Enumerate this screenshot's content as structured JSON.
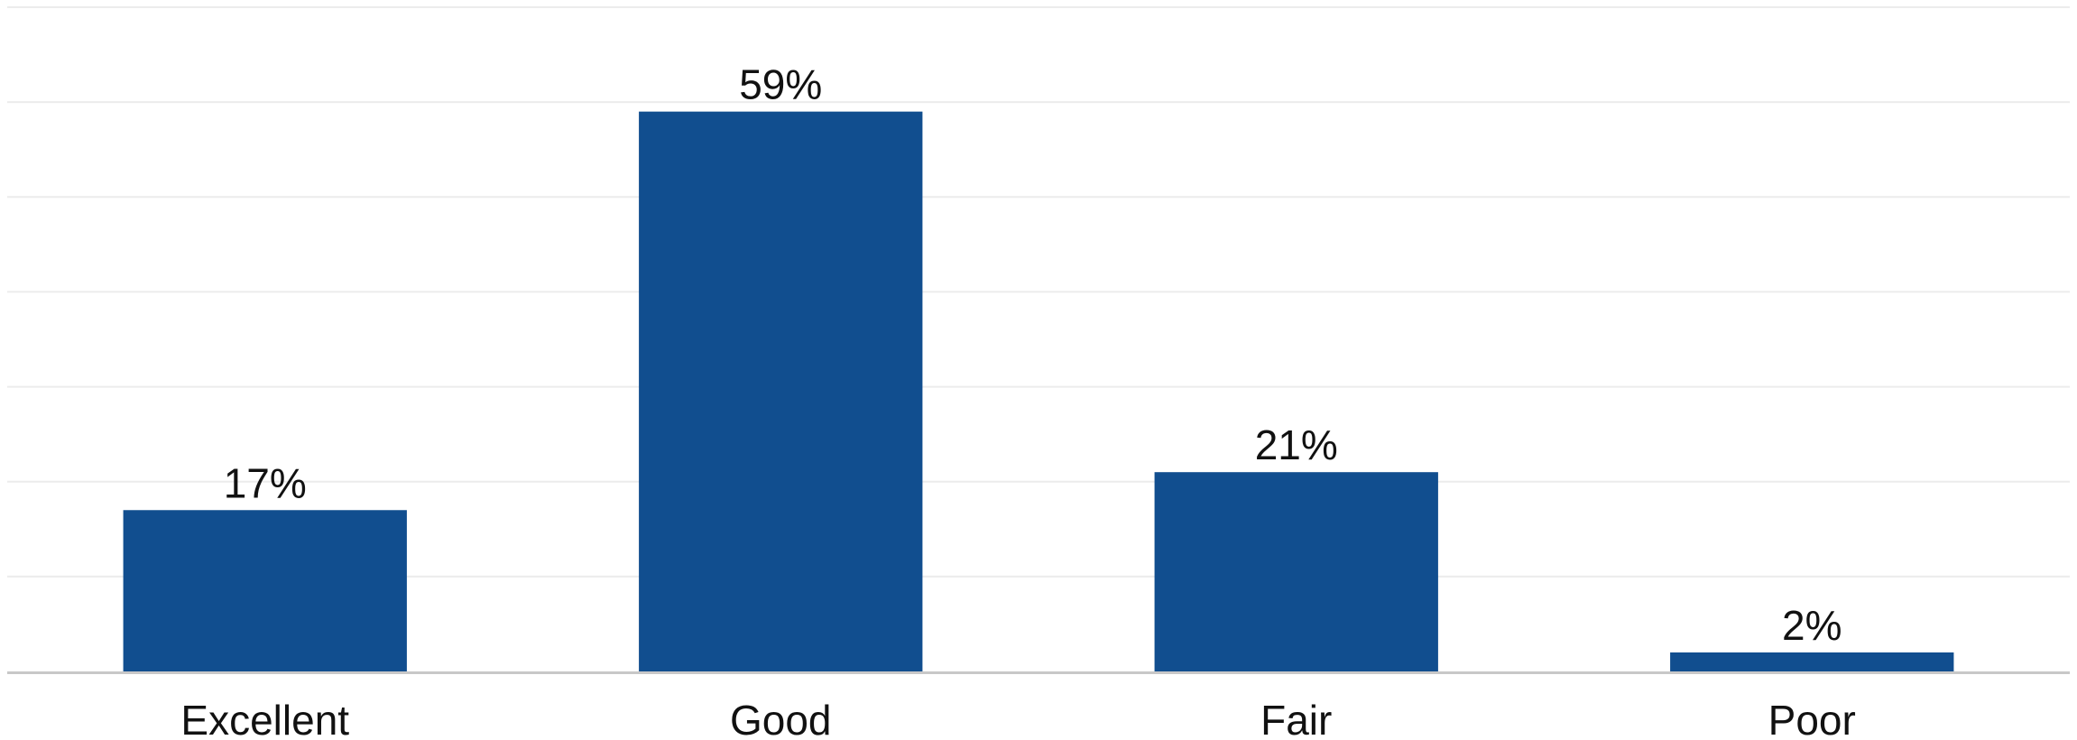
{
  "chart_data": {
    "type": "bar",
    "title": "",
    "xlabel": "",
    "ylabel": "",
    "categories": [
      "Excellent",
      "Good",
      "Fair",
      "Poor"
    ],
    "values": [
      17,
      59,
      21,
      2
    ],
    "data_labels": [
      "17%",
      "59%",
      "21%",
      "2%"
    ],
    "ylim": [
      0,
      70
    ],
    "grid": true,
    "bar_color": "#114e8f",
    "grid_color": "#ececec",
    "axis_color": "#c8c8c8",
    "text_color": "#111111"
  }
}
